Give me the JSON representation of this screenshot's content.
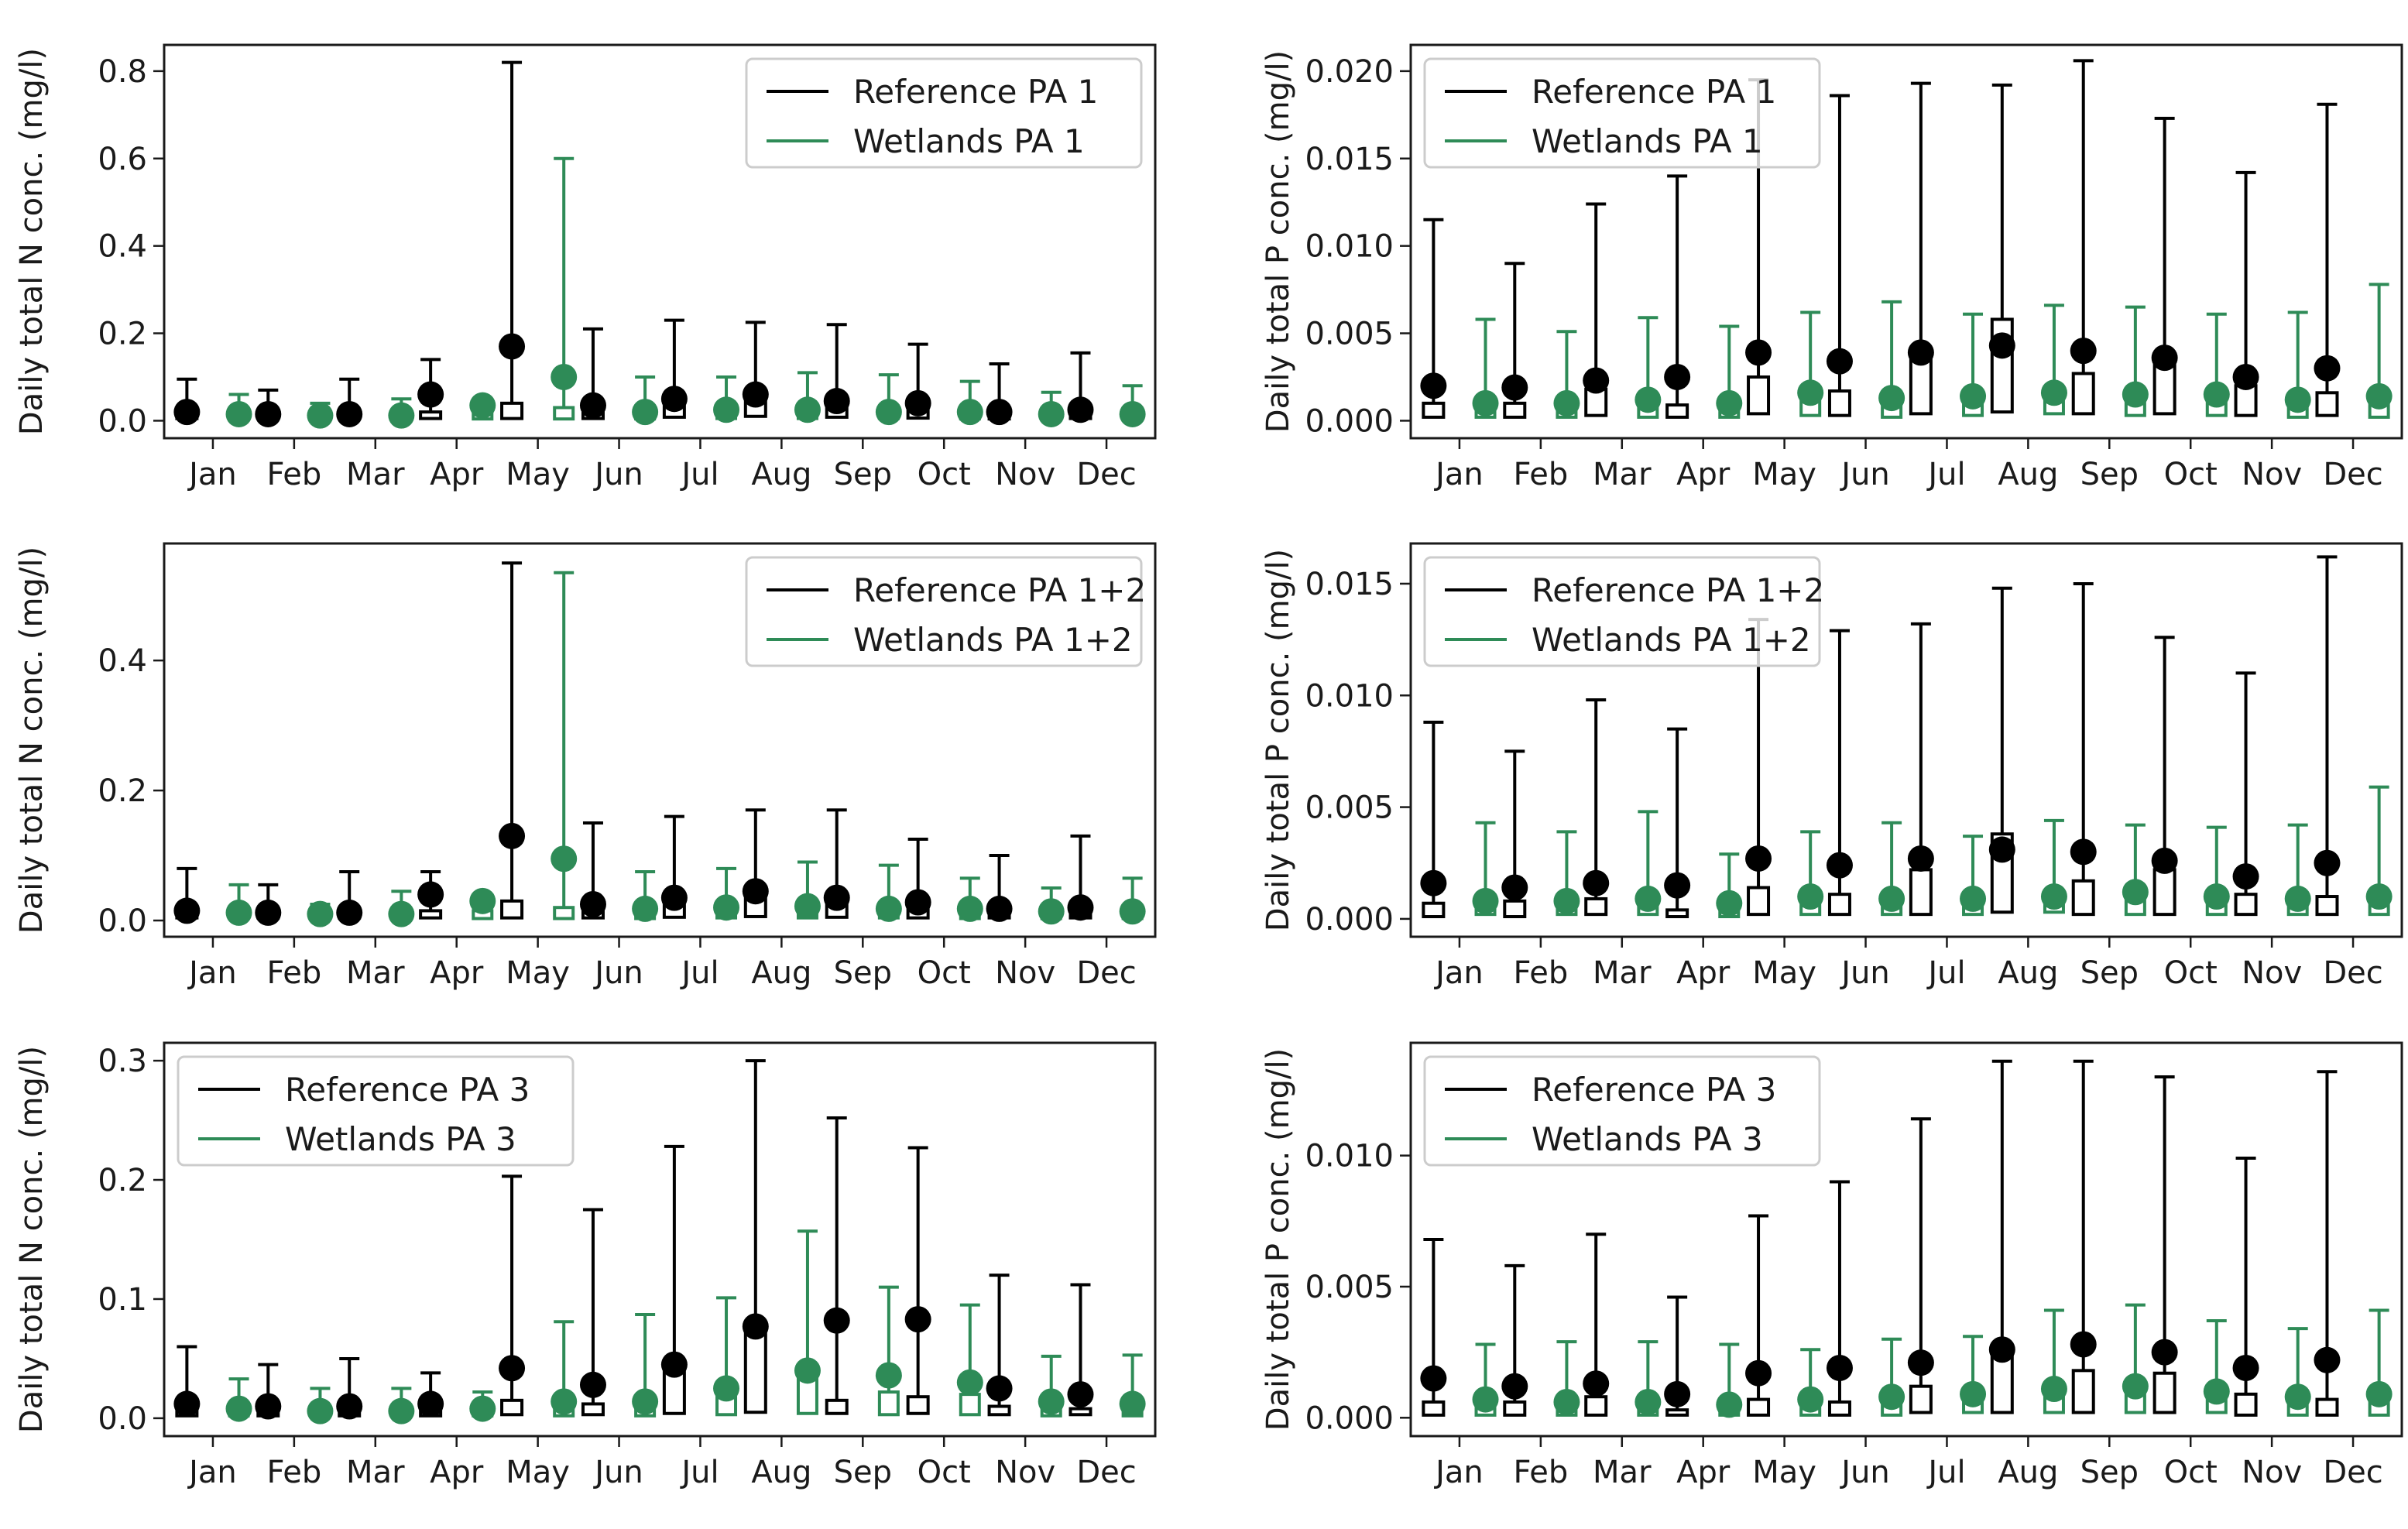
{
  "colors": {
    "reference": "#000000",
    "wetlands": "#2e8b57"
  },
  "chart_data": [
    {
      "type": "box",
      "ylabel": "Daily total N conc. (mg/l)",
      "categories": [
        "Jan",
        "Feb",
        "Mar",
        "Apr",
        "May",
        "Jun",
        "Jul",
        "Aug",
        "Sep",
        "Oct",
        "Nov",
        "Dec"
      ],
      "ylim": [
        -0.04,
        0.86
      ],
      "yticks": [
        0.0,
        0.2,
        0.4,
        0.6,
        0.8
      ],
      "yticklabels": [
        "0.0",
        "0.2",
        "0.4",
        "0.6",
        "0.8"
      ],
      "legend": {
        "position": "top-right",
        "entries": [
          "Reference PA 1",
          "Wetlands PA 1"
        ]
      },
      "series": [
        {
          "name": "Reference PA 1",
          "median": [
            0.02,
            0.015,
            0.015,
            0.06,
            0.17,
            0.035,
            0.05,
            0.06,
            0.045,
            0.04,
            0.02,
            0.025
          ],
          "q1": [
            0.005,
            0.005,
            0.005,
            0.005,
            0.005,
            0.005,
            0.008,
            0.01,
            0.008,
            0.006,
            0.004,
            0.005
          ],
          "q3": [
            0.02,
            0.015,
            0.015,
            0.02,
            0.04,
            0.03,
            0.04,
            0.06,
            0.04,
            0.035,
            0.02,
            0.025
          ],
          "whisker_high": [
            0.095,
            0.07,
            0.095,
            0.14,
            0.82,
            0.21,
            0.23,
            0.225,
            0.22,
            0.175,
            0.13,
            0.155
          ]
        },
        {
          "name": "Wetlands PA 1",
          "median": [
            0.015,
            0.012,
            0.012,
            0.035,
            0.1,
            0.02,
            0.025,
            0.025,
            0.02,
            0.02,
            0.015,
            0.015
          ],
          "q1": [
            0.004,
            0.004,
            0.004,
            0.004,
            0.004,
            0.004,
            0.005,
            0.005,
            0.005,
            0.004,
            0.004,
            0.004
          ],
          "q3": [
            0.015,
            0.012,
            0.012,
            0.02,
            0.03,
            0.02,
            0.025,
            0.025,
            0.02,
            0.02,
            0.015,
            0.015
          ],
          "whisker_high": [
            0.06,
            0.04,
            0.05,
            0.05,
            0.6,
            0.1,
            0.1,
            0.11,
            0.105,
            0.09,
            0.065,
            0.08
          ]
        }
      ]
    },
    {
      "type": "box",
      "ylabel": "Daily total P conc. (mg/l)",
      "categories": [
        "Jan",
        "Feb",
        "Mar",
        "Apr",
        "May",
        "Jun",
        "Jul",
        "Aug",
        "Sep",
        "Oct",
        "Nov",
        "Dec"
      ],
      "ylim": [
        -0.001,
        0.0215
      ],
      "yticks": [
        0.0,
        0.005,
        0.01,
        0.015,
        0.02
      ],
      "yticklabels": [
        "0.000",
        "0.005",
        "0.010",
        "0.015",
        "0.020"
      ],
      "legend": {
        "position": "top-left",
        "entries": [
          "Reference PA 1",
          "Wetlands PA 1"
        ]
      },
      "series": [
        {
          "name": "Reference PA 1",
          "median": [
            0.002,
            0.0019,
            0.0023,
            0.0025,
            0.0039,
            0.0034,
            0.0039,
            0.0043,
            0.004,
            0.0036,
            0.0025,
            0.003
          ],
          "q1": [
            0.0002,
            0.0002,
            0.0003,
            0.0002,
            0.0004,
            0.0003,
            0.0004,
            0.0005,
            0.0004,
            0.0004,
            0.0003,
            0.0003
          ],
          "q3": [
            0.001,
            0.001,
            0.0018,
            0.0009,
            0.0025,
            0.0017,
            0.0037,
            0.0058,
            0.0027,
            0.0037,
            0.002,
            0.0016
          ],
          "whisker_high": [
            0.0115,
            0.009,
            0.0124,
            0.014,
            0.0195,
            0.0186,
            0.0193,
            0.0192,
            0.0206,
            0.0173,
            0.0142,
            0.0181
          ]
        },
        {
          "name": "Wetlands PA 1",
          "median": [
            0.001,
            0.001,
            0.0012,
            0.001,
            0.0016,
            0.0013,
            0.0014,
            0.0016,
            0.0015,
            0.0015,
            0.0012,
            0.0014
          ],
          "q1": [
            0.0002,
            0.0002,
            0.0002,
            0.0002,
            0.0003,
            0.0002,
            0.0003,
            0.0004,
            0.0003,
            0.0003,
            0.0002,
            0.0002
          ],
          "q3": [
            0.0009,
            0.0009,
            0.001,
            0.0008,
            0.0014,
            0.0011,
            0.0013,
            0.0016,
            0.0014,
            0.0014,
            0.001,
            0.0012
          ],
          "whisker_high": [
            0.0058,
            0.0051,
            0.0059,
            0.0054,
            0.0062,
            0.0068,
            0.0061,
            0.0066,
            0.0065,
            0.0061,
            0.0062,
            0.0078
          ]
        }
      ]
    },
    {
      "type": "box",
      "ylabel": "Daily total N conc. (mg/l)",
      "categories": [
        "Jan",
        "Feb",
        "Mar",
        "Apr",
        "May",
        "Jun",
        "Jul",
        "Aug",
        "Sep",
        "Oct",
        "Nov",
        "Dec"
      ],
      "ylim": [
        -0.025,
        0.58
      ],
      "yticks": [
        0.0,
        0.2,
        0.4
      ],
      "yticklabels": [
        "0.0",
        "0.2",
        "0.4"
      ],
      "legend": {
        "position": "top-right",
        "entries": [
          "Reference PA 1+2",
          "Wetlands PA 1+2"
        ]
      },
      "series": [
        {
          "name": "Reference PA 1+2",
          "median": [
            0.015,
            0.012,
            0.012,
            0.04,
            0.13,
            0.025,
            0.035,
            0.045,
            0.035,
            0.028,
            0.018,
            0.02
          ],
          "q1": [
            0.004,
            0.004,
            0.004,
            0.004,
            0.004,
            0.004,
            0.005,
            0.006,
            0.005,
            0.004,
            0.004,
            0.004
          ],
          "q3": [
            0.015,
            0.012,
            0.012,
            0.015,
            0.03,
            0.02,
            0.03,
            0.04,
            0.03,
            0.025,
            0.015,
            0.02
          ],
          "whisker_high": [
            0.08,
            0.055,
            0.075,
            0.075,
            0.55,
            0.15,
            0.16,
            0.17,
            0.17,
            0.125,
            0.1,
            0.13
          ]
        },
        {
          "name": "Wetlands PA 1+2",
          "median": [
            0.012,
            0.01,
            0.01,
            0.03,
            0.095,
            0.018,
            0.02,
            0.022,
            0.018,
            0.018,
            0.014,
            0.014
          ],
          "q1": [
            0.003,
            0.003,
            0.003,
            0.003,
            0.003,
            0.003,
            0.004,
            0.004,
            0.004,
            0.003,
            0.003,
            0.003
          ],
          "q3": [
            0.012,
            0.01,
            0.01,
            0.015,
            0.02,
            0.018,
            0.02,
            0.02,
            0.018,
            0.018,
            0.014,
            0.014
          ],
          "whisker_high": [
            0.055,
            0.025,
            0.045,
            0.025,
            0.535,
            0.075,
            0.08,
            0.09,
            0.085,
            0.065,
            0.05,
            0.065
          ]
        }
      ]
    },
    {
      "type": "box",
      "ylabel": "Daily total P conc. (mg/l)",
      "categories": [
        "Jan",
        "Feb",
        "Mar",
        "Apr",
        "May",
        "Jun",
        "Jul",
        "Aug",
        "Sep",
        "Oct",
        "Nov",
        "Dec"
      ],
      "ylim": [
        -0.0008,
        0.0168
      ],
      "yticks": [
        0.0,
        0.005,
        0.01,
        0.015
      ],
      "yticklabels": [
        "0.000",
        "0.005",
        "0.010",
        "0.015"
      ],
      "legend": {
        "position": "top-left",
        "entries": [
          "Reference PA 1+2",
          "Wetlands PA 1+2"
        ]
      },
      "series": [
        {
          "name": "Reference PA 1+2",
          "median": [
            0.0016,
            0.0014,
            0.0016,
            0.0015,
            0.0027,
            0.0024,
            0.0027,
            0.0031,
            0.003,
            0.0026,
            0.0019,
            0.0025
          ],
          "q1": [
            0.0001,
            0.0001,
            0.0002,
            0.0001,
            0.0002,
            0.0002,
            0.0002,
            0.0003,
            0.0002,
            0.0002,
            0.0002,
            0.0002
          ],
          "q3": [
            0.0007,
            0.0008,
            0.0009,
            0.0004,
            0.0014,
            0.0011,
            0.0022,
            0.0038,
            0.0017,
            0.0022,
            0.0011,
            0.001
          ],
          "whisker_high": [
            0.0088,
            0.0075,
            0.0098,
            0.0085,
            0.0134,
            0.0129,
            0.0132,
            0.0148,
            0.015,
            0.0126,
            0.011,
            0.0162
          ]
        },
        {
          "name": "Wetlands PA 1+2",
          "median": [
            0.0008,
            0.0008,
            0.0009,
            0.0007,
            0.001,
            0.0009,
            0.0009,
            0.001,
            0.0012,
            0.001,
            0.0009,
            0.001
          ],
          "q1": [
            0.0002,
            0.0002,
            0.0002,
            0.0001,
            0.0002,
            0.0002,
            0.0002,
            0.0003,
            0.0002,
            0.0002,
            0.0002,
            0.0002
          ],
          "q3": [
            0.0007,
            0.0007,
            0.0008,
            0.0006,
            0.0009,
            0.0008,
            0.0008,
            0.001,
            0.0011,
            0.0009,
            0.0008,
            0.0009
          ],
          "whisker_high": [
            0.0043,
            0.0039,
            0.0048,
            0.0029,
            0.0039,
            0.0043,
            0.0037,
            0.0044,
            0.0042,
            0.0041,
            0.0042,
            0.0059
          ]
        }
      ]
    },
    {
      "type": "box",
      "ylabel": "Daily total N conc. (mg/l)",
      "categories": [
        "Jan",
        "Feb",
        "Mar",
        "Apr",
        "May",
        "Jun",
        "Jul",
        "Aug",
        "Sep",
        "Oct",
        "Nov",
        "Dec"
      ],
      "ylim": [
        -0.015,
        0.315
      ],
      "yticks": [
        0.0,
        0.1,
        0.2,
        0.3
      ],
      "yticklabels": [
        "0.0",
        "0.1",
        "0.2",
        "0.3"
      ],
      "legend": {
        "position": "top-left",
        "entries": [
          "Reference PA 3",
          "Wetlands PA 3"
        ]
      },
      "series": [
        {
          "name": "Reference PA 3",
          "median": [
            0.012,
            0.01,
            0.01,
            0.012,
            0.042,
            0.028,
            0.045,
            0.077,
            0.082,
            0.083,
            0.025,
            0.02
          ],
          "q1": [
            0.002,
            0.002,
            0.002,
            0.002,
            0.003,
            0.003,
            0.004,
            0.005,
            0.004,
            0.004,
            0.003,
            0.003
          ],
          "q3": [
            0.01,
            0.008,
            0.008,
            0.01,
            0.015,
            0.012,
            0.04,
            0.08,
            0.015,
            0.018,
            0.01,
            0.008
          ],
          "whisker_high": [
            0.06,
            0.045,
            0.05,
            0.038,
            0.203,
            0.175,
            0.228,
            0.3,
            0.252,
            0.227,
            0.12,
            0.112
          ]
        },
        {
          "name": "Wetlands PA 3",
          "median": [
            0.008,
            0.006,
            0.006,
            0.008,
            0.014,
            0.014,
            0.025,
            0.04,
            0.036,
            0.03,
            0.014,
            0.012
          ],
          "q1": [
            0.002,
            0.002,
            0.002,
            0.002,
            0.002,
            0.002,
            0.003,
            0.004,
            0.003,
            0.003,
            0.002,
            0.002
          ],
          "q3": [
            0.008,
            0.006,
            0.006,
            0.008,
            0.012,
            0.012,
            0.02,
            0.04,
            0.022,
            0.02,
            0.012,
            0.01
          ],
          "whisker_high": [
            0.033,
            0.025,
            0.025,
            0.022,
            0.081,
            0.087,
            0.101,
            0.157,
            0.11,
            0.095,
            0.052,
            0.053
          ]
        }
      ]
    },
    {
      "type": "box",
      "ylabel": "Daily total P conc. (mg/l)",
      "categories": [
        "Jan",
        "Feb",
        "Mar",
        "Apr",
        "May",
        "Jun",
        "Jul",
        "Aug",
        "Sep",
        "Oct",
        "Nov",
        "Dec"
      ],
      "ylim": [
        -0.0007,
        0.0143
      ],
      "yticks": [
        0.0,
        0.005,
        0.01
      ],
      "yticklabels": [
        "0.000",
        "0.005",
        "0.010"
      ],
      "legend": {
        "position": "top-left",
        "entries": [
          "Reference PA 3",
          "Wetlands PA 3"
        ]
      },
      "series": [
        {
          "name": "Reference PA 3",
          "median": [
            0.0015,
            0.0012,
            0.0013,
            0.0009,
            0.0017,
            0.0019,
            0.0021,
            0.0026,
            0.0028,
            0.0025,
            0.0019,
            0.0022
          ],
          "q1": [
            0.0001,
            0.0001,
            0.0001,
            0.0001,
            0.0001,
            0.0001,
            0.0002,
            0.0002,
            0.0002,
            0.0002,
            0.0001,
            0.0001
          ],
          "q3": [
            0.0006,
            0.0006,
            0.0008,
            0.0003,
            0.0007,
            0.0006,
            0.0012,
            0.0024,
            0.0018,
            0.0017,
            0.0009,
            0.0007
          ],
          "whisker_high": [
            0.0068,
            0.0058,
            0.007,
            0.0046,
            0.0077,
            0.009,
            0.0114,
            0.0136,
            0.0136,
            0.013,
            0.0099,
            0.0132
          ]
        },
        {
          "name": "Wetlands PA 3",
          "median": [
            0.0007,
            0.0006,
            0.0006,
            0.0005,
            0.0007,
            0.0008,
            0.0009,
            0.0011,
            0.0012,
            0.001,
            0.0008,
            0.0009
          ],
          "q1": [
            0.0001,
            0.0001,
            0.0001,
            0.0001,
            0.0001,
            0.0001,
            0.0002,
            0.0002,
            0.0002,
            0.0002,
            0.0001,
            0.0001
          ],
          "q3": [
            0.0006,
            0.0005,
            0.0006,
            0.0004,
            0.0006,
            0.0007,
            0.0008,
            0.001,
            0.0011,
            0.0009,
            0.0007,
            0.0008
          ],
          "whisker_high": [
            0.0028,
            0.0029,
            0.0029,
            0.0028,
            0.0026,
            0.003,
            0.0031,
            0.0041,
            0.0043,
            0.0037,
            0.0034,
            0.0041
          ]
        }
      ]
    }
  ]
}
